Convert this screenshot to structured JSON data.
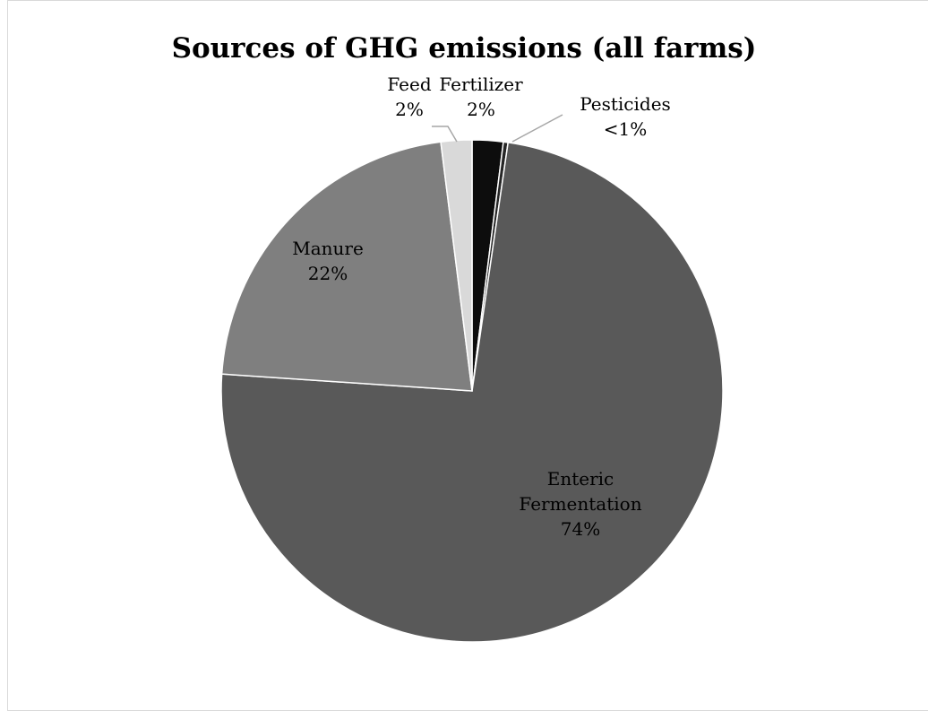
{
  "chart_data": {
    "type": "pie",
    "title": "Sources of GHG emissions (all farms)",
    "slices": [
      {
        "name": "Fertilizer",
        "label": "2%",
        "value": 2,
        "color": "#0d0d0d"
      },
      {
        "name": "Pesticides",
        "label": "<1%",
        "value": 0.3,
        "color": "#262626"
      },
      {
        "name": "Enteric Fermentation",
        "label": "74%",
        "value": 74,
        "color": "#595959"
      },
      {
        "name": "Manure",
        "label": "22%",
        "value": 22,
        "color": "#7f7f7f"
      },
      {
        "name": "Feed",
        "label": "2%",
        "value": 2,
        "color": "#d9d9d9"
      }
    ],
    "start": "12 o'clock",
    "direction": "clockwise",
    "legend": "none",
    "slice_border_color": "#ffffff",
    "leader_line_color": "#a6a6a6"
  }
}
